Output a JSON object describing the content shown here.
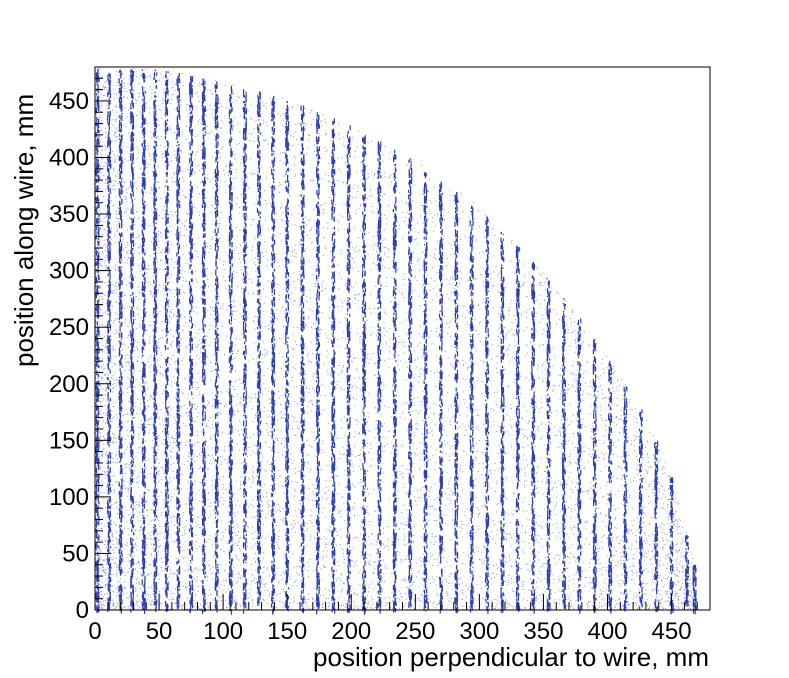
{
  "chart_data": {
    "type": "scatter",
    "title": "",
    "xlabel": "position perpendicular to wire, mm",
    "ylabel": "position along wire, mm",
    "xlim": [
      0,
      480
    ],
    "ylim": [
      0,
      480
    ],
    "x_ticks": [
      0,
      50,
      100,
      150,
      200,
      250,
      300,
      350,
      400,
      450
    ],
    "y_ticks": [
      0,
      50,
      100,
      150,
      200,
      250,
      300,
      350,
      400,
      450
    ],
    "grid": false,
    "legend": "none",
    "marker_color": "#2e3fb0",
    "wire_pitch_mm": 10,
    "series": [
      {
        "description_points": "hit density bands at each wire position",
        "wire_x": [
          2,
          11,
          20,
          29,
          38,
          47,
          56,
          65,
          75,
          85,
          95,
          106,
          117,
          128,
          139,
          150,
          162,
          174,
          186,
          198,
          210,
          222,
          234,
          246,
          258,
          270,
          282,
          294,
          306,
          318,
          330,
          342,
          354,
          366,
          378,
          390,
          402,
          414,
          426,
          438,
          450,
          462,
          468
        ],
        "envelope_x": [
          0,
          50,
          100,
          150,
          200,
          250,
          300,
          350,
          400,
          430,
          450,
          468
        ],
        "envelope_y": [
          480,
          478,
          467,
          452,
          428,
          397,
          356,
          300,
          225,
          170,
          120,
          40
        ]
      }
    ]
  }
}
